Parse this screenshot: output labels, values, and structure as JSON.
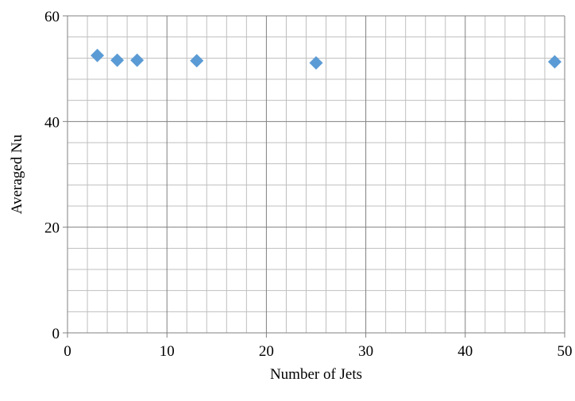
{
  "chart_data": {
    "type": "scatter",
    "title": "",
    "xlabel": "Number of Jets",
    "ylabel": "Averaged Nu",
    "xlim": [
      0,
      50
    ],
    "ylim": [
      0,
      60
    ],
    "x_major_ticks": [
      0,
      10,
      20,
      30,
      40,
      50
    ],
    "y_major_ticks": [
      0,
      20,
      40,
      60
    ],
    "x_minor_step": 2,
    "y_minor_step": 4,
    "grid": true,
    "legend": "none",
    "marker": "diamond",
    "marker_color": "#5B9BD5",
    "gridline_color": "#BFBFBF",
    "major_gridline_color": "#808080",
    "series": [
      {
        "x": [
          3,
          5,
          7,
          13,
          25,
          49
        ],
        "y": [
          52.5,
          51.6,
          51.6,
          51.5,
          51.1,
          51.3
        ]
      }
    ]
  }
}
